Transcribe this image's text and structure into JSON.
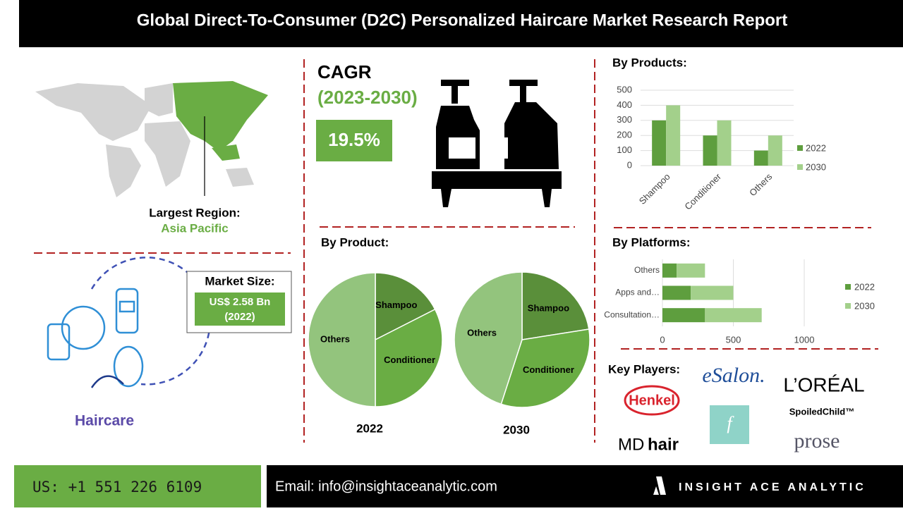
{
  "header": {
    "title": "Global Direct-To-Consumer (D2C) Personalized Haircare Market Research Report"
  },
  "region": {
    "label": "Largest Region:",
    "value": "Asia Pacific"
  },
  "cagr": {
    "label": "CAGR",
    "period": "(2023-2030)",
    "value": "19.5%"
  },
  "market_size": {
    "label": "Market Size:",
    "value": "US$ 2.58 Bn",
    "year": "(2022)"
  },
  "icon_label": "Haircare",
  "key_players": {
    "title": "Key Players:",
    "logos": [
      "eSalon.",
      "L’ORÉAL",
      "Henkel",
      "SpoiledChild™",
      "MD",
      "hair",
      "f",
      "prose"
    ]
  },
  "footer": {
    "phone": "US: +1 551 226 6109",
    "email": "Email: info@insightaceanalytic.com",
    "brand": "INSIGHT ACE ANALYTIC"
  },
  "chart_data": [
    {
      "type": "pie",
      "title": "By Product:",
      "caption": "2022",
      "categories": [
        "Shampoo",
        "Conditioner",
        "Others"
      ],
      "values": [
        17.5,
        32.5,
        50
      ],
      "colors": [
        "#5a8f3a",
        "#6aad44",
        "#93c47d"
      ]
    },
    {
      "type": "pie",
      "caption": "2030",
      "categories": [
        "Shampoo",
        "Conditioner",
        "Others"
      ],
      "values": [
        22.5,
        32.5,
        45
      ],
      "colors": [
        "#5a8f3a",
        "#6aad44",
        "#93c47d"
      ]
    },
    {
      "type": "bar",
      "title": "By Products:",
      "categories": [
        "Shampoo",
        "Conditioner",
        "Others"
      ],
      "series": [
        {
          "name": "2022",
          "color": "#5e9e3e",
          "values": [
            300,
            200,
            100
          ]
        },
        {
          "name": "2030",
          "color": "#a3d08b",
          "values": [
            400,
            300,
            200
          ]
        }
      ],
      "ylim": [
        0,
        500
      ],
      "yticks": [
        0,
        100,
        200,
        300,
        400,
        500
      ],
      "grid": true,
      "legend": "right"
    },
    {
      "type": "stackedbar",
      "title": "By Platforms:",
      "categories": [
        "Others",
        "Apps and…",
        "Consultation…"
      ],
      "series": [
        {
          "name": "2022",
          "color": "#5e9e3e",
          "values": [
            100,
            200,
            300
          ]
        },
        {
          "name": "2030",
          "color": "#a3d08b",
          "values": [
            200,
            300,
            400
          ]
        }
      ],
      "xlim": [
        0,
        1000
      ],
      "xticks": [
        0,
        500,
        1000
      ],
      "grid": true,
      "legend": "right"
    }
  ]
}
